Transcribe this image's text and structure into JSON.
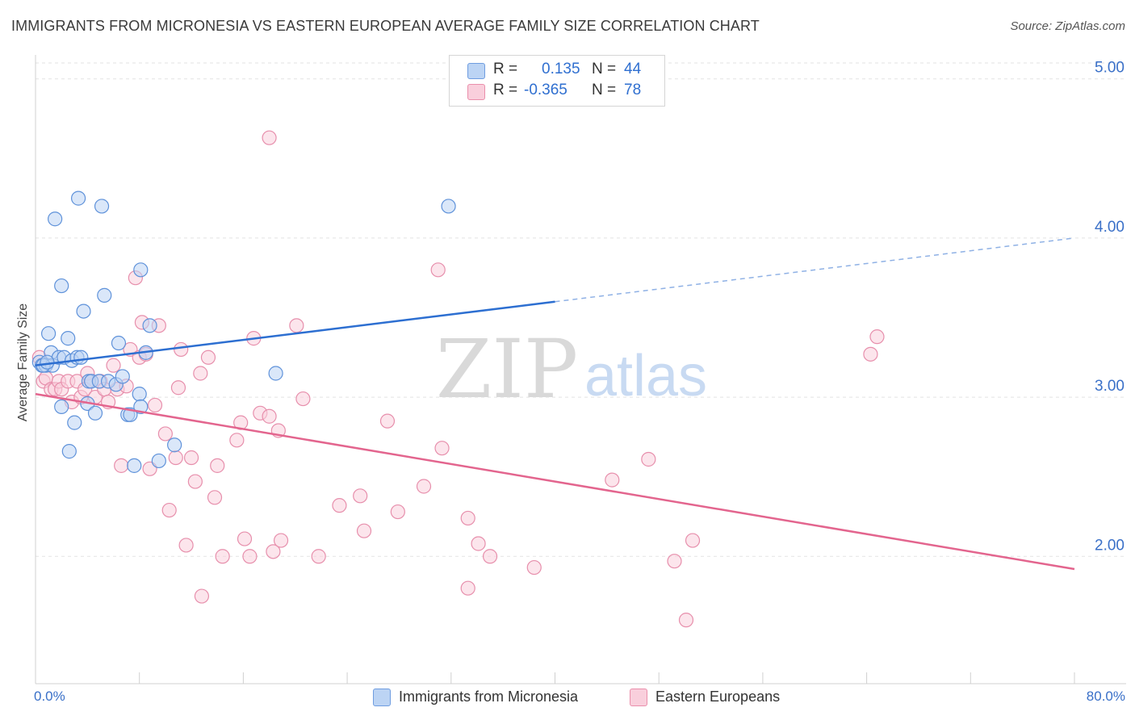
{
  "title": "IMMIGRANTS FROM MICRONESIA VS EASTERN EUROPEAN AVERAGE FAMILY SIZE CORRELATION CHART",
  "source": "Source: ZipAtlas.com",
  "legend": {
    "r_label": "R =",
    "n_label": "N =",
    "rows": [
      {
        "r": "0.135",
        "n": "44"
      },
      {
        "r": "-0.365",
        "n": "78"
      }
    ]
  },
  "watermark": {
    "zip": "ZIP",
    "atlas": "atlas"
  },
  "colors": {
    "blue": "#4a87d8",
    "blue_fill": "#bcd4f4",
    "pink": "#e3658e",
    "pink_fill": "#f9cfdc",
    "axis_text": "#3a70c8"
  },
  "chart_data": {
    "type": "scatter",
    "title": "IMMIGRANTS FROM MICRONESIA VS EASTERN EUROPEAN AVERAGE FAMILY SIZE CORRELATION CHART",
    "xlabel": "",
    "ylabel": "Average Family Size",
    "xlim": [
      0,
      80
    ],
    "ylim": [
      1.2,
      5.1
    ],
    "x_tick_labels": [
      "0.0%",
      "80.0%"
    ],
    "y_ticks": [
      2.0,
      3.0,
      4.0,
      5.0
    ],
    "y_tick_labels": [
      "2.00",
      "3.00",
      "4.00",
      "5.00"
    ],
    "grid": true,
    "series": [
      {
        "name": "Immigrants from Micronesia",
        "points": [
          [
            0.3,
            3.22
          ],
          [
            0.5,
            3.2
          ],
          [
            0.8,
            3.2
          ],
          [
            1.0,
            3.4
          ],
          [
            1.2,
            3.28
          ],
          [
            1.3,
            3.2
          ],
          [
            1.5,
            4.12
          ],
          [
            1.8,
            3.25
          ],
          [
            2.0,
            2.94
          ],
          [
            2.0,
            3.7
          ],
          [
            2.2,
            3.25
          ],
          [
            2.5,
            3.37
          ],
          [
            2.6,
            2.66
          ],
          [
            2.8,
            3.23
          ],
          [
            3.0,
            2.84
          ],
          [
            3.2,
            3.25
          ],
          [
            3.3,
            4.25
          ],
          [
            3.5,
            3.25
          ],
          [
            3.7,
            3.54
          ],
          [
            4.0,
            2.96
          ],
          [
            4.1,
            3.1
          ],
          [
            4.3,
            3.1
          ],
          [
            4.6,
            2.9
          ],
          [
            4.9,
            3.1
          ],
          [
            5.1,
            4.2
          ],
          [
            5.3,
            3.64
          ],
          [
            5.6,
            3.1
          ],
          [
            6.2,
            3.08
          ],
          [
            6.4,
            3.34
          ],
          [
            6.7,
            3.13
          ],
          [
            7.1,
            2.89
          ],
          [
            7.3,
            2.89
          ],
          [
            7.6,
            2.57
          ],
          [
            8.0,
            3.02
          ],
          [
            8.1,
            2.94
          ],
          [
            8.1,
            3.8
          ],
          [
            8.5,
            3.28
          ],
          [
            8.8,
            3.45
          ],
          [
            9.5,
            2.6
          ],
          [
            10.7,
            2.7
          ],
          [
            18.5,
            3.15
          ],
          [
            31.8,
            4.2
          ],
          [
            0.6,
            3.2
          ],
          [
            0.9,
            3.22
          ]
        ]
      },
      {
        "name": "Eastern Europeans",
        "points": [
          [
            0.3,
            3.25
          ],
          [
            0.6,
            3.1
          ],
          [
            0.8,
            3.12
          ],
          [
            1.2,
            3.05
          ],
          [
            1.5,
            3.05
          ],
          [
            1.8,
            3.1
          ],
          [
            2.0,
            3.05
          ],
          [
            2.5,
            3.1
          ],
          [
            2.8,
            2.97
          ],
          [
            3.2,
            3.1
          ],
          [
            3.5,
            3.0
          ],
          [
            3.8,
            3.05
          ],
          [
            4.0,
            3.15
          ],
          [
            4.3,
            3.1
          ],
          [
            4.6,
            3.0
          ],
          [
            5.0,
            3.1
          ],
          [
            5.3,
            3.05
          ],
          [
            5.6,
            2.97
          ],
          [
            6.0,
            3.2
          ],
          [
            6.3,
            3.05
          ],
          [
            6.6,
            2.57
          ],
          [
            7.0,
            3.07
          ],
          [
            7.3,
            3.3
          ],
          [
            7.7,
            3.75
          ],
          [
            8.0,
            3.25
          ],
          [
            8.2,
            3.47
          ],
          [
            8.5,
            3.27
          ],
          [
            8.8,
            2.55
          ],
          [
            9.2,
            2.95
          ],
          [
            9.5,
            3.45
          ],
          [
            10.0,
            2.77
          ],
          [
            10.3,
            2.29
          ],
          [
            10.8,
            2.62
          ],
          [
            11.2,
            3.3
          ],
          [
            11.6,
            2.07
          ],
          [
            12.0,
            2.62
          ],
          [
            12.3,
            2.47
          ],
          [
            12.7,
            3.15
          ],
          [
            12.8,
            1.75
          ],
          [
            13.3,
            3.25
          ],
          [
            13.8,
            2.37
          ],
          [
            14.0,
            2.57
          ],
          [
            14.4,
            2.0
          ],
          [
            15.5,
            2.73
          ],
          [
            15.8,
            2.84
          ],
          [
            16.1,
            2.11
          ],
          [
            16.5,
            2.0
          ],
          [
            16.8,
            3.37
          ],
          [
            17.3,
            2.9
          ],
          [
            18.0,
            2.88
          ],
          [
            18.3,
            2.03
          ],
          [
            18.7,
            2.79
          ],
          [
            18.9,
            2.1
          ],
          [
            20.1,
            3.45
          ],
          [
            20.6,
            2.99
          ],
          [
            21.8,
            2.0
          ],
          [
            23.4,
            2.32
          ],
          [
            25.0,
            2.38
          ],
          [
            25.3,
            2.16
          ],
          [
            27.1,
            2.85
          ],
          [
            27.9,
            2.28
          ],
          [
            29.9,
            2.44
          ],
          [
            31.3,
            2.68
          ],
          [
            31.0,
            3.8
          ],
          [
            33.3,
            1.8
          ],
          [
            33.3,
            2.24
          ],
          [
            34.1,
            2.08
          ],
          [
            35.0,
            2.0
          ],
          [
            38.4,
            1.93
          ],
          [
            44.4,
            2.48
          ],
          [
            47.2,
            2.61
          ],
          [
            49.2,
            1.97
          ],
          [
            50.1,
            1.6
          ],
          [
            50.6,
            2.1
          ],
          [
            64.3,
            3.27
          ],
          [
            64.8,
            3.38
          ],
          [
            18.0,
            4.63
          ],
          [
            11.0,
            3.06
          ]
        ]
      }
    ],
    "trendlines": [
      {
        "series": "Immigrants from Micronesia",
        "x_start": 0,
        "y_start": 3.2,
        "x_end": 40,
        "y_end": 3.6,
        "dashed_to_x": 80,
        "dashed_to_y": 4.0
      },
      {
        "series": "Eastern Europeans",
        "x_start": 0,
        "y_start": 3.02,
        "x_end": 80,
        "y_end": 1.92
      }
    ]
  }
}
